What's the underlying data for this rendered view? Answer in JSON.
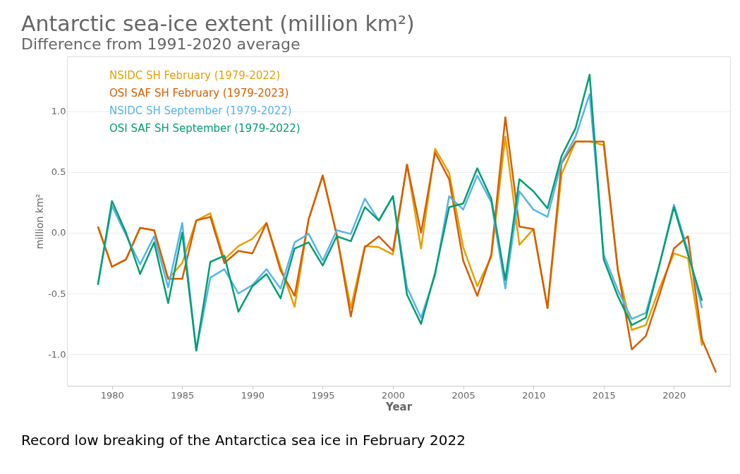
{
  "chart_data": {
    "type": "line",
    "title": "Antarctic sea-ice extent (million km²)",
    "subtitle": "Difference from 1991-2020 average",
    "xlabel": "Year",
    "ylabel": "million km²",
    "annotations": [
      "Record low breaking of  the Antarctica sea ice in February 2022"
    ],
    "x": [
      1979,
      1980,
      1981,
      1982,
      1983,
      1984,
      1985,
      1986,
      1987,
      1988,
      1989,
      1990,
      1991,
      1992,
      1993,
      1994,
      1995,
      1996,
      1997,
      1998,
      1999,
      2000,
      2001,
      2002,
      2003,
      2004,
      2005,
      2006,
      2007,
      2008,
      2009,
      2010,
      2011,
      2012,
      2013,
      2014,
      2015,
      2016,
      2017,
      2018,
      2019,
      2020,
      2021,
      2022,
      2023
    ],
    "series": [
      {
        "name": "NSIDC SH February (1979-2022)",
        "color": "#e69f00",
        "values": [
          0.05,
          -0.28,
          -0.22,
          0.04,
          0.02,
          -0.38,
          -0.25,
          0.1,
          0.16,
          -0.22,
          -0.11,
          -0.05,
          0.08,
          -0.28,
          -0.61,
          0.11,
          0.47,
          -0.02,
          -0.62,
          -0.11,
          -0.12,
          -0.18,
          0.56,
          -0.13,
          0.69,
          0.49,
          -0.12,
          -0.44,
          -0.2,
          0.79,
          -0.1,
          0.03,
          -0.62,
          0.48,
          0.75,
          0.75,
          0.72,
          -0.3,
          -0.8,
          -0.76,
          -0.45,
          -0.17,
          -0.21,
          -0.93,
          null
        ]
      },
      {
        "name": "OSI SAF SH February (1979-2023)",
        "color": "#d55e00",
        "values": [
          0.05,
          -0.28,
          -0.22,
          0.04,
          0.02,
          -0.38,
          -0.38,
          0.1,
          0.13,
          -0.25,
          -0.15,
          -0.17,
          0.08,
          -0.31,
          -0.52,
          0.11,
          0.47,
          -0.02,
          -0.69,
          -0.12,
          -0.03,
          -0.15,
          0.56,
          0.0,
          0.66,
          0.44,
          -0.23,
          -0.52,
          -0.18,
          0.95,
          0.05,
          0.03,
          -0.62,
          0.57,
          0.75,
          0.75,
          0.75,
          -0.3,
          -0.96,
          -0.85,
          -0.5,
          -0.13,
          -0.03,
          -0.88,
          -1.15
        ]
      },
      {
        "name": "NSIDC SH September (1979-2022)",
        "color": "#56b4e9",
        "values": [
          -0.42,
          0.22,
          -0.02,
          -0.26,
          -0.03,
          -0.45,
          0.08,
          -0.97,
          -0.37,
          -0.3,
          -0.5,
          -0.43,
          -0.3,
          -0.46,
          -0.08,
          -0.01,
          -0.23,
          0.02,
          -0.01,
          0.28,
          0.1,
          0.3,
          -0.45,
          -0.7,
          -0.35,
          0.3,
          0.19,
          0.47,
          0.25,
          -0.46,
          0.34,
          0.19,
          0.13,
          0.58,
          0.79,
          1.14,
          -0.18,
          -0.47,
          -0.71,
          -0.66,
          -0.25,
          0.23,
          -0.15,
          -0.62,
          null
        ]
      },
      {
        "name": "OSI SAF SH September (1979-2022)",
        "color": "#009e73",
        "values": [
          -0.43,
          0.26,
          0.0,
          -0.34,
          -0.08,
          -0.58,
          0.0,
          -0.97,
          -0.24,
          -0.19,
          -0.65,
          -0.44,
          -0.34,
          -0.54,
          -0.13,
          -0.08,
          -0.27,
          -0.03,
          -0.07,
          0.21,
          0.1,
          0.3,
          -0.51,
          -0.75,
          -0.33,
          0.21,
          0.24,
          0.53,
          0.28,
          -0.39,
          0.44,
          0.34,
          0.2,
          0.63,
          0.86,
          1.3,
          -0.22,
          -0.52,
          -0.76,
          -0.7,
          -0.25,
          0.21,
          -0.18,
          -0.56,
          null
        ]
      }
    ],
    "xlim": [
      1976.8,
      2024
    ],
    "xticks": [
      1980,
      1985,
      1990,
      1995,
      2000,
      2005,
      2010,
      2015,
      2020
    ],
    "ylim": [
      -1.26,
      1.45
    ],
    "yticks": [
      {
        "value": -1,
        "label": "-1.0"
      },
      {
        "value": -0.5,
        "label": "-0.5"
      },
      {
        "value": 0,
        "label": "0.0"
      },
      {
        "value": 0.5,
        "label": "0.5"
      },
      {
        "value": 1,
        "label": "1.0"
      }
    ],
    "grid": "y",
    "legend": "top left",
    "marker": "none",
    "line_style": "solid"
  }
}
